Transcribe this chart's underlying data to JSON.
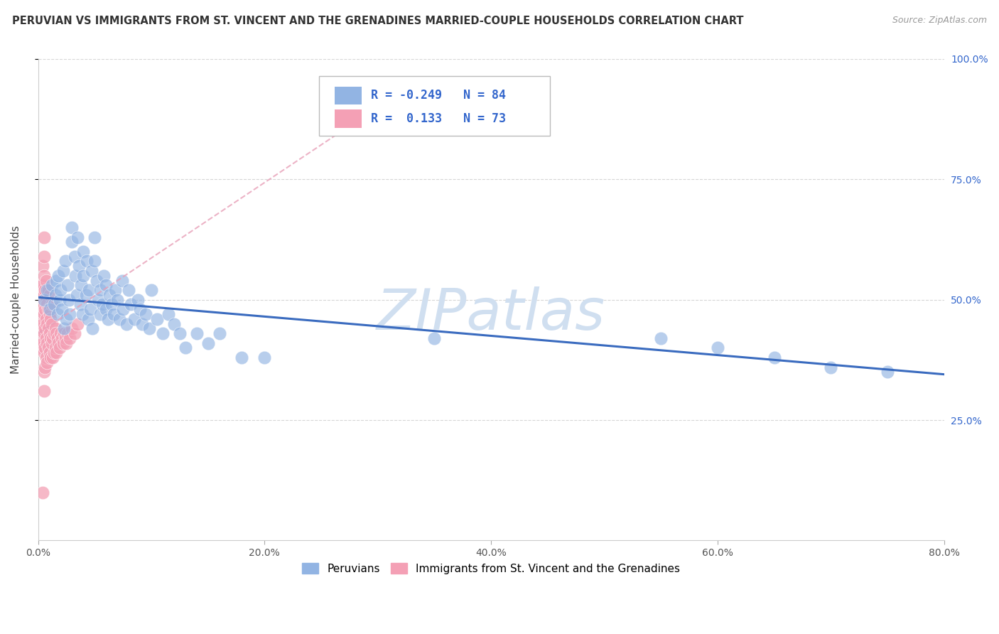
{
  "title": "PERUVIAN VS IMMIGRANTS FROM ST. VINCENT AND THE GRENADINES MARRIED-COUPLE HOUSEHOLDS CORRELATION CHART",
  "source": "Source: ZipAtlas.com",
  "ylabel": "Married-couple Households",
  "xlabel": "",
  "xlim": [
    0.0,
    0.8
  ],
  "ylim": [
    0.0,
    1.0
  ],
  "xtick_labels": [
    "0.0%",
    "20.0%",
    "40.0%",
    "60.0%",
    "80.0%"
  ],
  "xtick_vals": [
    0.0,
    0.2,
    0.4,
    0.6,
    0.8
  ],
  "ytick_labels": [
    "25.0%",
    "50.0%",
    "75.0%",
    "100.0%"
  ],
  "ytick_vals": [
    0.25,
    0.5,
    0.75,
    1.0
  ],
  "legend_labels": [
    "Peruvians",
    "Immigrants from St. Vincent and the Grenadines"
  ],
  "blue_color": "#92b4e3",
  "pink_color": "#f4a0b5",
  "blue_line_color": "#3a6bbf",
  "pink_line_color": "#e8a0b8",
  "R_blue": -0.249,
  "N_blue": 84,
  "R_pink": 0.133,
  "N_pink": 73,
  "watermark": "ZIPatlas",
  "watermark_color": "#d0dff0",
  "title_fontsize": 10.5,
  "axis_label_fontsize": 11,
  "tick_fontsize": 10,
  "blue_line_x0": 0.0,
  "blue_line_y0": 0.505,
  "blue_line_x1": 0.8,
  "blue_line_y1": 0.345,
  "pink_line_x0": 0.0,
  "pink_line_y0": 0.43,
  "pink_line_x1": 0.3,
  "pink_line_y1": 0.9,
  "blue_scatter_x": [
    0.005,
    0.008,
    0.01,
    0.012,
    0.014,
    0.015,
    0.016,
    0.017,
    0.018,
    0.019,
    0.02,
    0.021,
    0.022,
    0.023,
    0.024,
    0.025,
    0.026,
    0.027,
    0.028,
    0.03,
    0.03,
    0.032,
    0.033,
    0.034,
    0.035,
    0.036,
    0.037,
    0.038,
    0.039,
    0.04,
    0.04,
    0.042,
    0.043,
    0.044,
    0.045,
    0.046,
    0.047,
    0.048,
    0.05,
    0.05,
    0.052,
    0.053,
    0.055,
    0.055,
    0.057,
    0.058,
    0.06,
    0.06,
    0.062,
    0.063,
    0.065,
    0.067,
    0.068,
    0.07,
    0.072,
    0.074,
    0.075,
    0.078,
    0.08,
    0.082,
    0.085,
    0.088,
    0.09,
    0.092,
    0.095,
    0.098,
    0.1,
    0.105,
    0.11,
    0.115,
    0.12,
    0.125,
    0.13,
    0.14,
    0.15,
    0.16,
    0.18,
    0.2,
    0.35,
    0.55,
    0.6,
    0.65,
    0.7,
    0.75
  ],
  "blue_scatter_y": [
    0.5,
    0.52,
    0.48,
    0.53,
    0.49,
    0.51,
    0.54,
    0.47,
    0.55,
    0.5,
    0.52,
    0.48,
    0.56,
    0.44,
    0.58,
    0.46,
    0.53,
    0.5,
    0.47,
    0.62,
    0.65,
    0.59,
    0.55,
    0.51,
    0.63,
    0.57,
    0.49,
    0.53,
    0.47,
    0.6,
    0.55,
    0.51,
    0.58,
    0.46,
    0.52,
    0.48,
    0.56,
    0.44,
    0.63,
    0.58,
    0.54,
    0.5,
    0.47,
    0.52,
    0.49,
    0.55,
    0.48,
    0.53,
    0.46,
    0.51,
    0.49,
    0.47,
    0.52,
    0.5,
    0.46,
    0.54,
    0.48,
    0.45,
    0.52,
    0.49,
    0.46,
    0.5,
    0.48,
    0.45,
    0.47,
    0.44,
    0.52,
    0.46,
    0.43,
    0.47,
    0.45,
    0.43,
    0.4,
    0.43,
    0.41,
    0.43,
    0.38,
    0.38,
    0.42,
    0.42,
    0.4,
    0.38,
    0.36,
    0.35
  ],
  "pink_scatter_x": [
    0.002,
    0.002,
    0.002,
    0.002,
    0.003,
    0.003,
    0.003,
    0.003,
    0.004,
    0.004,
    0.004,
    0.004,
    0.004,
    0.005,
    0.005,
    0.005,
    0.005,
    0.005,
    0.005,
    0.005,
    0.005,
    0.005,
    0.006,
    0.006,
    0.006,
    0.006,
    0.006,
    0.007,
    0.007,
    0.007,
    0.007,
    0.007,
    0.008,
    0.008,
    0.008,
    0.008,
    0.009,
    0.009,
    0.009,
    0.009,
    0.01,
    0.01,
    0.01,
    0.01,
    0.011,
    0.011,
    0.011,
    0.012,
    0.012,
    0.012,
    0.013,
    0.013,
    0.014,
    0.014,
    0.015,
    0.015,
    0.016,
    0.016,
    0.017,
    0.018,
    0.019,
    0.02,
    0.021,
    0.022,
    0.023,
    0.024,
    0.025,
    0.026,
    0.028,
    0.03,
    0.032,
    0.035,
    0.004
  ],
  "pink_scatter_y": [
    0.5,
    0.46,
    0.53,
    0.42,
    0.48,
    0.44,
    0.52,
    0.4,
    0.49,
    0.45,
    0.53,
    0.41,
    0.57,
    0.47,
    0.43,
    0.51,
    0.39,
    0.55,
    0.35,
    0.59,
    0.31,
    0.63,
    0.44,
    0.48,
    0.4,
    0.52,
    0.36,
    0.46,
    0.42,
    0.5,
    0.38,
    0.54,
    0.45,
    0.41,
    0.49,
    0.37,
    0.44,
    0.48,
    0.4,
    0.52,
    0.43,
    0.47,
    0.39,
    0.51,
    0.42,
    0.46,
    0.38,
    0.45,
    0.41,
    0.49,
    0.42,
    0.38,
    0.43,
    0.39,
    0.44,
    0.4,
    0.43,
    0.39,
    0.42,
    0.41,
    0.4,
    0.43,
    0.42,
    0.41,
    0.43,
    0.42,
    0.41,
    0.43,
    0.42,
    0.44,
    0.43,
    0.45,
    0.1
  ]
}
